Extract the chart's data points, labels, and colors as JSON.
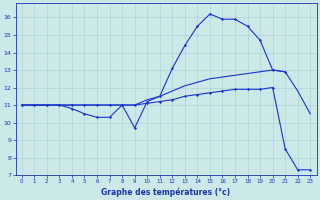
{
  "background_color": "#cce8e8",
  "grid_color": "#aad4d4",
  "line_color": "#1a34cc",
  "xlabel": "Graphe des températures (°c)",
  "xlim": [
    -0.5,
    23.5
  ],
  "ylim": [
    7,
    16.8
  ],
  "xticks": [
    0,
    1,
    2,
    3,
    4,
    5,
    6,
    7,
    8,
    9,
    10,
    11,
    12,
    13,
    14,
    15,
    16,
    17,
    18,
    19,
    20,
    21,
    22,
    23
  ],
  "yticks": [
    7,
    8,
    9,
    10,
    11,
    12,
    13,
    14,
    15,
    16
  ],
  "s1x": [
    0,
    1,
    2,
    3,
    4,
    5,
    6,
    7,
    8,
    9,
    10,
    11,
    12,
    13,
    14,
    15,
    16,
    17,
    18,
    19,
    20,
    21
  ],
  "s1y": [
    11,
    11,
    11,
    11,
    10.8,
    10.5,
    10.3,
    10.3,
    11.0,
    9.7,
    11.2,
    11.5,
    13.1,
    14.4,
    15.5,
    16.2,
    15.9,
    15.9,
    15.5,
    14.7,
    13.0,
    12.9
  ],
  "s2x": [
    0,
    1,
    2,
    3,
    4,
    5,
    6,
    7,
    8,
    9,
    10,
    11,
    12,
    13,
    14,
    15,
    16,
    17,
    18,
    19,
    20,
    21,
    22,
    23
  ],
  "s2y": [
    11,
    11,
    11,
    11,
    11,
    11,
    11,
    11,
    11,
    11,
    11.3,
    11.5,
    11.8,
    12.1,
    12.3,
    12.5,
    12.6,
    12.7,
    12.8,
    12.9,
    13.0,
    12.9,
    11.8,
    10.5
  ],
  "s3x": [
    0,
    1,
    2,
    3,
    4,
    5,
    6,
    7,
    8,
    9,
    10,
    11,
    12,
    13,
    14,
    15,
    16,
    17,
    18,
    19,
    20,
    21,
    22,
    23
  ],
  "s3y": [
    11,
    11,
    11,
    11,
    11,
    11,
    11,
    11,
    11,
    11,
    11.1,
    11.2,
    11.3,
    11.5,
    11.6,
    11.7,
    11.8,
    11.9,
    11.9,
    11.9,
    12.0,
    8.5,
    7.3,
    7.3
  ]
}
